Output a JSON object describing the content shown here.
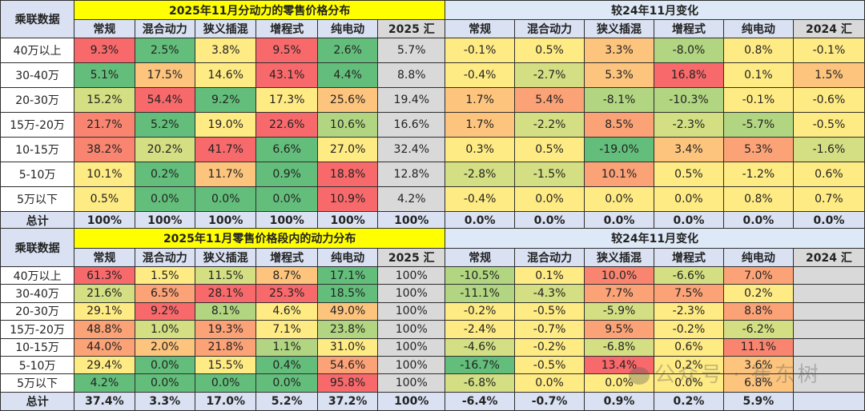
{
  "corner_label": "乘联数据",
  "row_labels": [
    "40万以上",
    "30-40万",
    "20-30万",
    "15万-20万",
    "10-15万",
    "5-10万",
    "5万以下"
  ],
  "total_label": "总计",
  "left_columns": [
    "常规",
    "混合动力",
    "狭义插混",
    "增程式",
    "纯电动",
    "2025 汇"
  ],
  "right_columns": [
    "常规",
    "混合动力",
    "狭义插混",
    "增程式",
    "纯电动",
    "2024 汇"
  ],
  "colors": {
    "red": "#f8696b",
    "orange_red": "#f98570",
    "orange": "#fba276",
    "light_orange": "#fdc47d",
    "yellow": "#ffeb84",
    "yellow_green": "#d3df82",
    "light_green": "#b1d580",
    "green": "#63be7b",
    "title_yellow": "#ffff00",
    "title_text": "#ff0000",
    "header_blue": "#d9e1f2",
    "sum_gray": "#d9d9d9"
  },
  "table1": {
    "title_left": "2025年11月分动力的零售价格分布",
    "title_right": "较24年11月变化",
    "rows": [
      {
        "left": [
          "9.3%",
          "2.5%",
          "3.8%",
          "9.5%",
          "2.6%",
          "5.7%"
        ],
        "right": [
          "-0.1%",
          "0.5%",
          "3.3%",
          "-8.0%",
          "0.8%",
          "-0.1%"
        ]
      },
      {
        "left": [
          "5.1%",
          "17.5%",
          "14.6%",
          "43.1%",
          "4.4%",
          "8.8%"
        ],
        "right": [
          "-0.4%",
          "-2.7%",
          "5.3%",
          "16.8%",
          "0.1%",
          "1.5%"
        ]
      },
      {
        "left": [
          "15.2%",
          "54.4%",
          "9.2%",
          "17.3%",
          "25.6%",
          "19.4%"
        ],
        "right": [
          "1.7%",
          "5.4%",
          "-8.1%",
          "-10.3%",
          "-0.1%",
          "-0.6%"
        ]
      },
      {
        "left": [
          "21.7%",
          "5.2%",
          "19.0%",
          "22.6%",
          "10.6%",
          "16.6%"
        ],
        "right": [
          "1.7%",
          "-2.2%",
          "8.5%",
          "-2.3%",
          "-5.7%",
          "-0.5%"
        ]
      },
      {
        "left": [
          "38.2%",
          "20.2%",
          "41.7%",
          "6.6%",
          "27.0%",
          "32.4%"
        ],
        "right": [
          "0.3%",
          "0.5%",
          "-19.0%",
          "3.4%",
          "5.3%",
          "-1.6%"
        ]
      },
      {
        "left": [
          "10.1%",
          "0.2%",
          "11.7%",
          "0.9%",
          "18.8%",
          "12.8%"
        ],
        "right": [
          "-2.8%",
          "-1.5%",
          "10.1%",
          "0.5%",
          "-1.2%",
          "0.6%"
        ]
      },
      {
        "left": [
          "0.5%",
          "0.0%",
          "0.0%",
          "0.0%",
          "10.9%",
          "4.2%"
        ],
        "right": [
          "-0.4%",
          "0.0%",
          "0.0%",
          "0.0%",
          "0.8%",
          "0.7%"
        ]
      }
    ],
    "total": {
      "left": [
        "100%",
        "100%",
        "100%",
        "100%",
        "100%",
        "100%"
      ],
      "right": [
        "0.0%",
        "0.0%",
        "0.0%",
        "0.0%",
        "0.0%",
        "0.0%"
      ]
    }
  },
  "table2": {
    "title_left": "2025年11月零售价格段内的动力分布",
    "title_right": "较24年11月变化",
    "rows": [
      {
        "left": [
          "61.3%",
          "1.5%",
          "11.5%",
          "8.7%",
          "17.1%",
          "100%"
        ],
        "right": [
          "-10.5%",
          "0.1%",
          "10.0%",
          "-6.6%",
          "7.0%",
          ""
        ]
      },
      {
        "left": [
          "21.6%",
          "6.5%",
          "28.1%",
          "25.3%",
          "18.5%",
          "100%"
        ],
        "right": [
          "-11.1%",
          "-4.3%",
          "7.7%",
          "7.5%",
          "0.2%",
          ""
        ]
      },
      {
        "left": [
          "29.1%",
          "9.2%",
          "8.1%",
          "4.6%",
          "49.0%",
          "100%"
        ],
        "right": [
          "-0.2%",
          "-0.5%",
          "-5.9%",
          "-2.3%",
          "8.8%",
          ""
        ]
      },
      {
        "left": [
          "48.8%",
          "1.0%",
          "19.3%",
          "7.1%",
          "23.8%",
          "100%"
        ],
        "right": [
          "-2.4%",
          "-0.7%",
          "9.5%",
          "-0.2%",
          "-6.2%",
          ""
        ]
      },
      {
        "left": [
          "44.0%",
          "2.0%",
          "21.8%",
          "1.1%",
          "31.0%",
          "100%"
        ],
        "right": [
          "-4.6%",
          "-0.2%",
          "-6.8%",
          "0.6%",
          "11.1%",
          ""
        ]
      },
      {
        "left": [
          "29.4%",
          "0.0%",
          "15.5%",
          "0.4%",
          "54.6%",
          "100%"
        ],
        "right": [
          "-16.7%",
          "-0.5%",
          "13.4%",
          "0.2%",
          "3.6%",
          ""
        ]
      },
      {
        "left": [
          "4.2%",
          "0.0%",
          "0.0%",
          "0.0%",
          "95.8%",
          "100%"
        ],
        "right": [
          "-6.8%",
          "0.0%",
          "0.0%",
          "0.0%",
          "6.8%",
          ""
        ]
      }
    ],
    "total": {
      "left": [
        "37.4%",
        "3.3%",
        "17.0%",
        "5.2%",
        "37.2%",
        "100%"
      ],
      "right": [
        "-6.4%",
        "-0.7%",
        "0.9%",
        "0.2%",
        "5.9%",
        ""
      ]
    }
  },
  "watermark": "公众号 · 崔东树",
  "chart_data": [
    {
      "type": "table",
      "title": "2025年11月分动力的零售价格分布",
      "categories": [
        "40万以上",
        "30-40万",
        "20-30万",
        "15万-20万",
        "10-15万",
        "5-10万",
        "5万以下",
        "总计"
      ],
      "series": [
        {
          "name": "常规",
          "values": [
            9.3,
            5.1,
            15.2,
            21.7,
            38.2,
            10.1,
            0.5,
            100
          ]
        },
        {
          "name": "混合动力",
          "values": [
            2.5,
            17.5,
            54.4,
            5.2,
            20.2,
            0.2,
            0.0,
            100
          ]
        },
        {
          "name": "狭义插混",
          "values": [
            3.8,
            14.6,
            9.2,
            19.0,
            41.7,
            11.7,
            0.0,
            100
          ]
        },
        {
          "name": "增程式",
          "values": [
            9.5,
            43.1,
            17.3,
            22.6,
            6.6,
            0.9,
            0.0,
            100
          ]
        },
        {
          "name": "纯电动",
          "values": [
            2.6,
            4.4,
            25.6,
            10.6,
            27.0,
            18.8,
            10.9,
            100
          ]
        },
        {
          "name": "2025 汇",
          "values": [
            5.7,
            8.8,
            19.4,
            16.6,
            32.4,
            12.8,
            4.2,
            100
          ]
        }
      ],
      "unit": "%"
    },
    {
      "type": "table",
      "title": "较24年11月变化 (分动力的零售价格分布)",
      "categories": [
        "40万以上",
        "30-40万",
        "20-30万",
        "15万-20万",
        "10-15万",
        "5-10万",
        "5万以下",
        "总计"
      ],
      "series": [
        {
          "name": "常规",
          "values": [
            -0.1,
            -0.4,
            1.7,
            1.7,
            0.3,
            -2.8,
            -0.4,
            0.0
          ]
        },
        {
          "name": "混合动力",
          "values": [
            0.5,
            -2.7,
            5.4,
            -2.2,
            0.5,
            -1.5,
            0.0,
            0.0
          ]
        },
        {
          "name": "狭义插混",
          "values": [
            3.3,
            5.3,
            -8.1,
            8.5,
            -19.0,
            10.1,
            0.0,
            0.0
          ]
        },
        {
          "name": "增程式",
          "values": [
            -8.0,
            16.8,
            -10.3,
            -2.3,
            3.4,
            0.5,
            0.0,
            0.0
          ]
        },
        {
          "name": "纯电动",
          "values": [
            0.8,
            0.1,
            -0.1,
            -5.7,
            5.3,
            -1.2,
            0.8,
            0.0
          ]
        },
        {
          "name": "2024 汇",
          "values": [
            -0.1,
            1.5,
            -0.6,
            -0.5,
            -1.6,
            0.6,
            0.7,
            0.0
          ]
        }
      ],
      "unit": "pp"
    },
    {
      "type": "table",
      "title": "2025年11月零售价格段内的动力分布",
      "categories": [
        "40万以上",
        "30-40万",
        "20-30万",
        "15万-20万",
        "10-15万",
        "5-10万",
        "5万以下",
        "总计"
      ],
      "series": [
        {
          "name": "常规",
          "values": [
            61.3,
            21.6,
            29.1,
            48.8,
            44.0,
            29.4,
            4.2,
            37.4
          ]
        },
        {
          "name": "混合动力",
          "values": [
            1.5,
            6.5,
            9.2,
            1.0,
            2.0,
            0.0,
            0.0,
            3.3
          ]
        },
        {
          "name": "狭义插混",
          "values": [
            11.5,
            28.1,
            8.1,
            19.3,
            21.8,
            15.5,
            0.0,
            17.0
          ]
        },
        {
          "name": "增程式",
          "values": [
            8.7,
            25.3,
            4.6,
            7.1,
            1.1,
            0.4,
            0.0,
            5.2
          ]
        },
        {
          "name": "纯电动",
          "values": [
            17.1,
            18.5,
            49.0,
            23.8,
            31.0,
            54.6,
            95.8,
            37.2
          ]
        },
        {
          "name": "2025 汇",
          "values": [
            100,
            100,
            100,
            100,
            100,
            100,
            100,
            100
          ]
        }
      ],
      "unit": "%"
    },
    {
      "type": "table",
      "title": "较24年11月变化 (价格段内的动力分布)",
      "categories": [
        "40万以上",
        "30-40万",
        "20-30万",
        "15万-20万",
        "10-15万",
        "5-10万",
        "5万以下",
        "总计"
      ],
      "series": [
        {
          "name": "常规",
          "values": [
            -10.5,
            -11.1,
            -0.2,
            -2.4,
            -4.6,
            -16.7,
            -6.8,
            -6.4
          ]
        },
        {
          "name": "混合动力",
          "values": [
            0.1,
            -4.3,
            -0.5,
            -0.7,
            -0.2,
            -0.5,
            0.0,
            -0.7
          ]
        },
        {
          "name": "狭义插混",
          "values": [
            10.0,
            7.7,
            -5.9,
            9.5,
            -6.8,
            13.4,
            0.0,
            0.9
          ]
        },
        {
          "name": "增程式",
          "values": [
            -6.6,
            7.5,
            -2.3,
            -0.2,
            0.6,
            0.2,
            0.0,
            0.2
          ]
        },
        {
          "name": "纯电动",
          "values": [
            7.0,
            0.2,
            8.8,
            -6.2,
            11.1,
            3.6,
            6.8,
            5.9
          ]
        },
        {
          "name": "2024 汇",
          "values": [
            null,
            null,
            null,
            null,
            null,
            null,
            null,
            null
          ]
        }
      ],
      "unit": "pp"
    }
  ]
}
